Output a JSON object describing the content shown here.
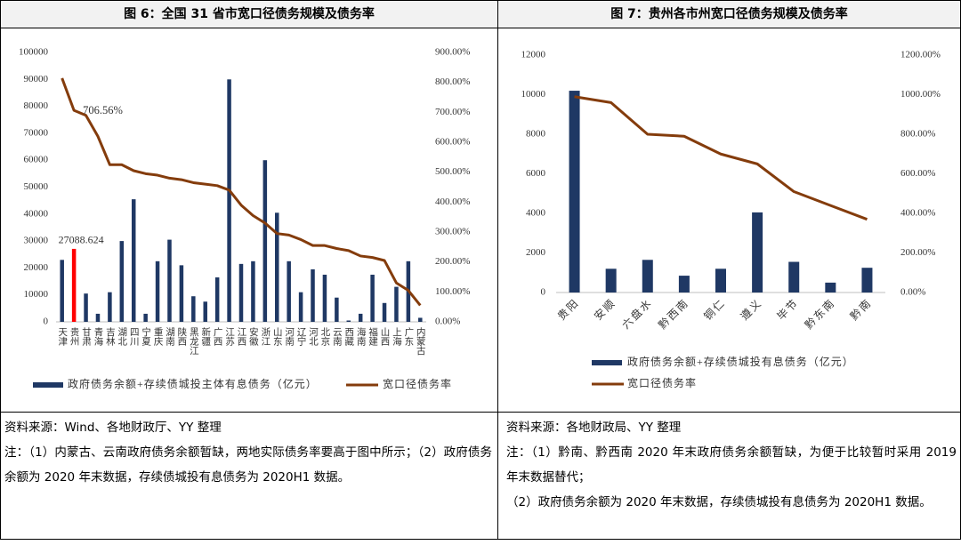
{
  "chart_data": [
    {
      "type": "combo",
      "title": "图 6：全国 31 省市宽口径债务规模及债务率",
      "categories": [
        "天津",
        "贵州",
        "甘肃",
        "青海",
        "吉林",
        "湖北",
        "四川",
        "宁夏",
        "重庆",
        "湖南",
        "陕西",
        "黑龙江",
        "新疆",
        "广西",
        "江苏",
        "江西",
        "安徽",
        "浙江",
        "山东",
        "河南",
        "辽宁",
        "河北",
        "北京",
        "云南",
        "西藏",
        "海南",
        "福建",
        "山西",
        "上海",
        "广东",
        "内蒙古"
      ],
      "series": [
        {
          "name": "政府债务余额+存续债城投主体有息债务（亿元）",
          "type": "bar",
          "color": "#1f3864",
          "highlight_index": 1,
          "highlight_color": "#ff0000",
          "values": [
            23000,
            27088.624,
            10500,
            3000,
            11000,
            30000,
            45500,
            3000,
            22500,
            30500,
            21000,
            9500,
            7500,
            16500,
            90000,
            21500,
            22500,
            60000,
            40500,
            22500,
            11000,
            19500,
            17500,
            9000,
            500,
            3000,
            17500,
            7000,
            13000,
            22500,
            1500
          ]
        },
        {
          "name": "宽口径债务率",
          "type": "line",
          "axis": "y2",
          "color": "#843c0c",
          "values": [
            814,
            706.56,
            690,
            620,
            525,
            525,
            505,
            495,
            490,
            480,
            475,
            465,
            460,
            455,
            440,
            390,
            355,
            330,
            295,
            290,
            275,
            255,
            255,
            245,
            238,
            220,
            215,
            205,
            130,
            105,
            55
          ],
          "value_labels": [
            null,
            "706.56%",
            null,
            null,
            null,
            null,
            null,
            null,
            null,
            null,
            null,
            null,
            null,
            null,
            null,
            null,
            null,
            null,
            null,
            null,
            null,
            null,
            null,
            null,
            null,
            null,
            null,
            null,
            null,
            null,
            null
          ]
        }
      ],
      "ylim": [
        0,
        100000
      ],
      "yticks": [
        0,
        10000,
        20000,
        30000,
        40000,
        50000,
        60000,
        70000,
        80000,
        90000,
        100000
      ],
      "y2lim": [
        0,
        900
      ],
      "y2ticks": [
        {
          "value": 0,
          "label": "0.00%"
        },
        {
          "value": 100,
          "label": "100.00%"
        },
        {
          "value": 200,
          "label": "200.00%"
        },
        {
          "value": 300,
          "label": "300.00%"
        },
        {
          "value": 400,
          "label": "400.00%"
        },
        {
          "value": 500,
          "label": "500.00%"
        },
        {
          "value": 600,
          "label": "600.00%"
        },
        {
          "value": 700,
          "label": "700.00%"
        },
        {
          "value": 800,
          "label": "800.00%"
        },
        {
          "value": 900,
          "label": "900.00%"
        }
      ]
    },
    {
      "type": "combo",
      "title": "图 7：贵州各市州宽口径债务规模及债务率",
      "categories": [
        "贵阳",
        "安顺",
        "六盘水",
        "黔西南",
        "铜仁",
        "遵义",
        "毕节",
        "黔东南",
        "黔南"
      ],
      "series": [
        {
          "name": "政府债务余额+存续债城投有息债务（亿元）",
          "type": "bar",
          "color": "#1f3864",
          "values": [
            10200,
            1200,
            1650,
            850,
            1200,
            4050,
            1550,
            500,
            1250
          ]
        },
        {
          "name": "宽口径债务率",
          "type": "line",
          "axis": "y2",
          "color": "#843c0c",
          "values": [
            990,
            960,
            800,
            790,
            700,
            650,
            510,
            440,
            370
          ]
        }
      ],
      "ylim": [
        0,
        12000
      ],
      "yticks": [
        0,
        2000,
        4000,
        6000,
        8000,
        10000,
        12000
      ],
      "y2lim": [
        0,
        1200
      ],
      "y2ticks": [
        {
          "value": 0,
          "label": "0.00%"
        },
        {
          "value": 200,
          "label": "200.00%"
        },
        {
          "value": 400,
          "label": "400.00%"
        },
        {
          "value": 600,
          "label": "600.00%"
        },
        {
          "value": 800,
          "label": "800.00%"
        },
        {
          "value": 1000,
          "label": "1000.00%"
        },
        {
          "value": 1200,
          "label": "1200.00%"
        }
      ]
    }
  ],
  "notes": [
    {
      "source": "资料来源：Wind、各地财政厅、YY 整理",
      "lines": [
        "注：（1）内蒙古、云南政府债务余额暂缺，两地实际债务率要高于图中所示；（2）政府债务余额为 2020 年末数据，存续债城投有息债务为 2020H1 数据。"
      ]
    },
    {
      "source": "资料来源：各地财政局、YY 整理",
      "lines": [
        "注：（1）黔南、黔西南 2020 年末政府债务余额暂缺，为便于比较暂时采用 2019 年末数据替代；",
        "（2）政府债务余额为 2020 年末数据，存续债城投有息债务为 2020H1 数据。"
      ]
    }
  ]
}
